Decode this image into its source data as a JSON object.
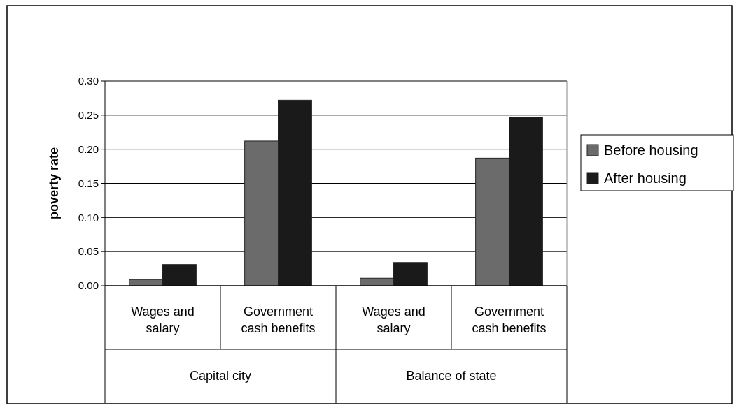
{
  "chart_data": {
    "type": "bar",
    "ylabel": "poverty rate",
    "categories": [
      "Wages and salary",
      "Government cash benefits",
      "Wages and salary",
      "Government cash benefits"
    ],
    "series": [
      {
        "name": "Before housing",
        "color": "#6b6b6b",
        "values": [
          0.009,
          0.212,
          0.011,
          0.187
        ]
      },
      {
        "name": "After housing",
        "color": "#1a1a1a",
        "values": [
          0.031,
          0.272,
          0.034,
          0.247
        ]
      }
    ],
    "ylim": [
      0,
      0.3
    ],
    "yticks": [
      {
        "value": 0,
        "label": "0.00"
      },
      {
        "value": 0.05,
        "label": "0.05"
      },
      {
        "value": 0.1,
        "label": "0.10"
      },
      {
        "value": 0.15,
        "label": "0.15"
      },
      {
        "value": 0.2,
        "label": "0.20"
      },
      {
        "value": 0.25,
        "label": "0.25"
      },
      {
        "value": 0.3,
        "label": "0.30"
      }
    ],
    "grid": "y",
    "legend": "right",
    "annotations": [
      "Capital city",
      "Balance of state"
    ]
  }
}
